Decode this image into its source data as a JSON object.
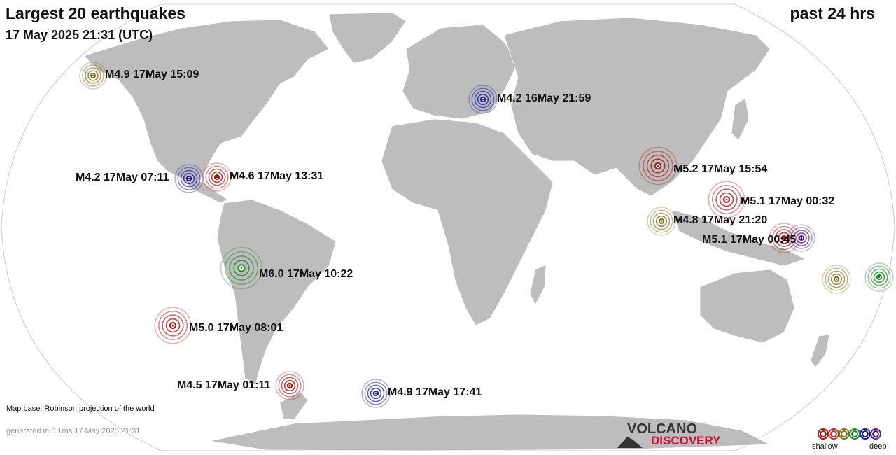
{
  "header": {
    "title": "Largest 20 earthquakes",
    "date": "17 May 2025 21:31 (UTC)",
    "period": "past 24 hrs"
  },
  "earthquakes": [
    {
      "label": "M4.9 17May 15:09",
      "color": "#7f7220",
      "size": 1.0
    },
    {
      "label": "M4.2 16May 21:59",
      "color": "#1a1aa6",
      "size": 1.05
    },
    {
      "label": "M4.2 17May 07:11",
      "color": "#1a1aa6",
      "size": 1.05
    },
    {
      "label": "M4.6 17May 13:31",
      "color": "#b01414",
      "size": 1.05
    },
    {
      "label": "M5.2 17May 15:54",
      "color": "#b01414",
      "size": 1.4
    },
    {
      "label": "M5.1 17May 00:32",
      "color": "#b01414",
      "size": 1.35
    },
    {
      "label": "M4.8 17May 21:20",
      "color": "#7f7220",
      "size": 1.05
    },
    {
      "label": "M5.1 17May 00:45",
      "color": "#b01414",
      "size": 1.1
    },
    {
      "label": "",
      "color": "#5a1e8e",
      "size": 1.0
    },
    {
      "label": "",
      "color": "#7f7220",
      "size": 1.05
    },
    {
      "label": "",
      "color": "#1f8a2a",
      "size": 1.05
    },
    {
      "label": "M6.0 17May 10:22",
      "color": "#1f8a2a",
      "size": 1.55
    },
    {
      "label": "M5.0 17May 08:01",
      "color": "#b01414",
      "size": 1.35
    },
    {
      "label": "M4.5 17May 01:11",
      "color": "#b01414",
      "size": 1.05
    },
    {
      "label": "M4.9 17May 17:41",
      "color": "#1a1aa6",
      "size": 1.05
    }
  ],
  "footer": {
    "map_base": "Map base: Robinson projection of the world",
    "generated": "generated in 0.1ms 17 May 2025 21:31",
    "logo_top": "VOLCANO",
    "logo_bottom": "DISCOVERY"
  },
  "legend": {
    "shallow": "shallow",
    "deep": "deep",
    "colors": [
      "#b01414",
      "#c0392b",
      "#7f7220",
      "#1f8a2a",
      "#1a1aa6",
      "#5a1e8e"
    ]
  }
}
